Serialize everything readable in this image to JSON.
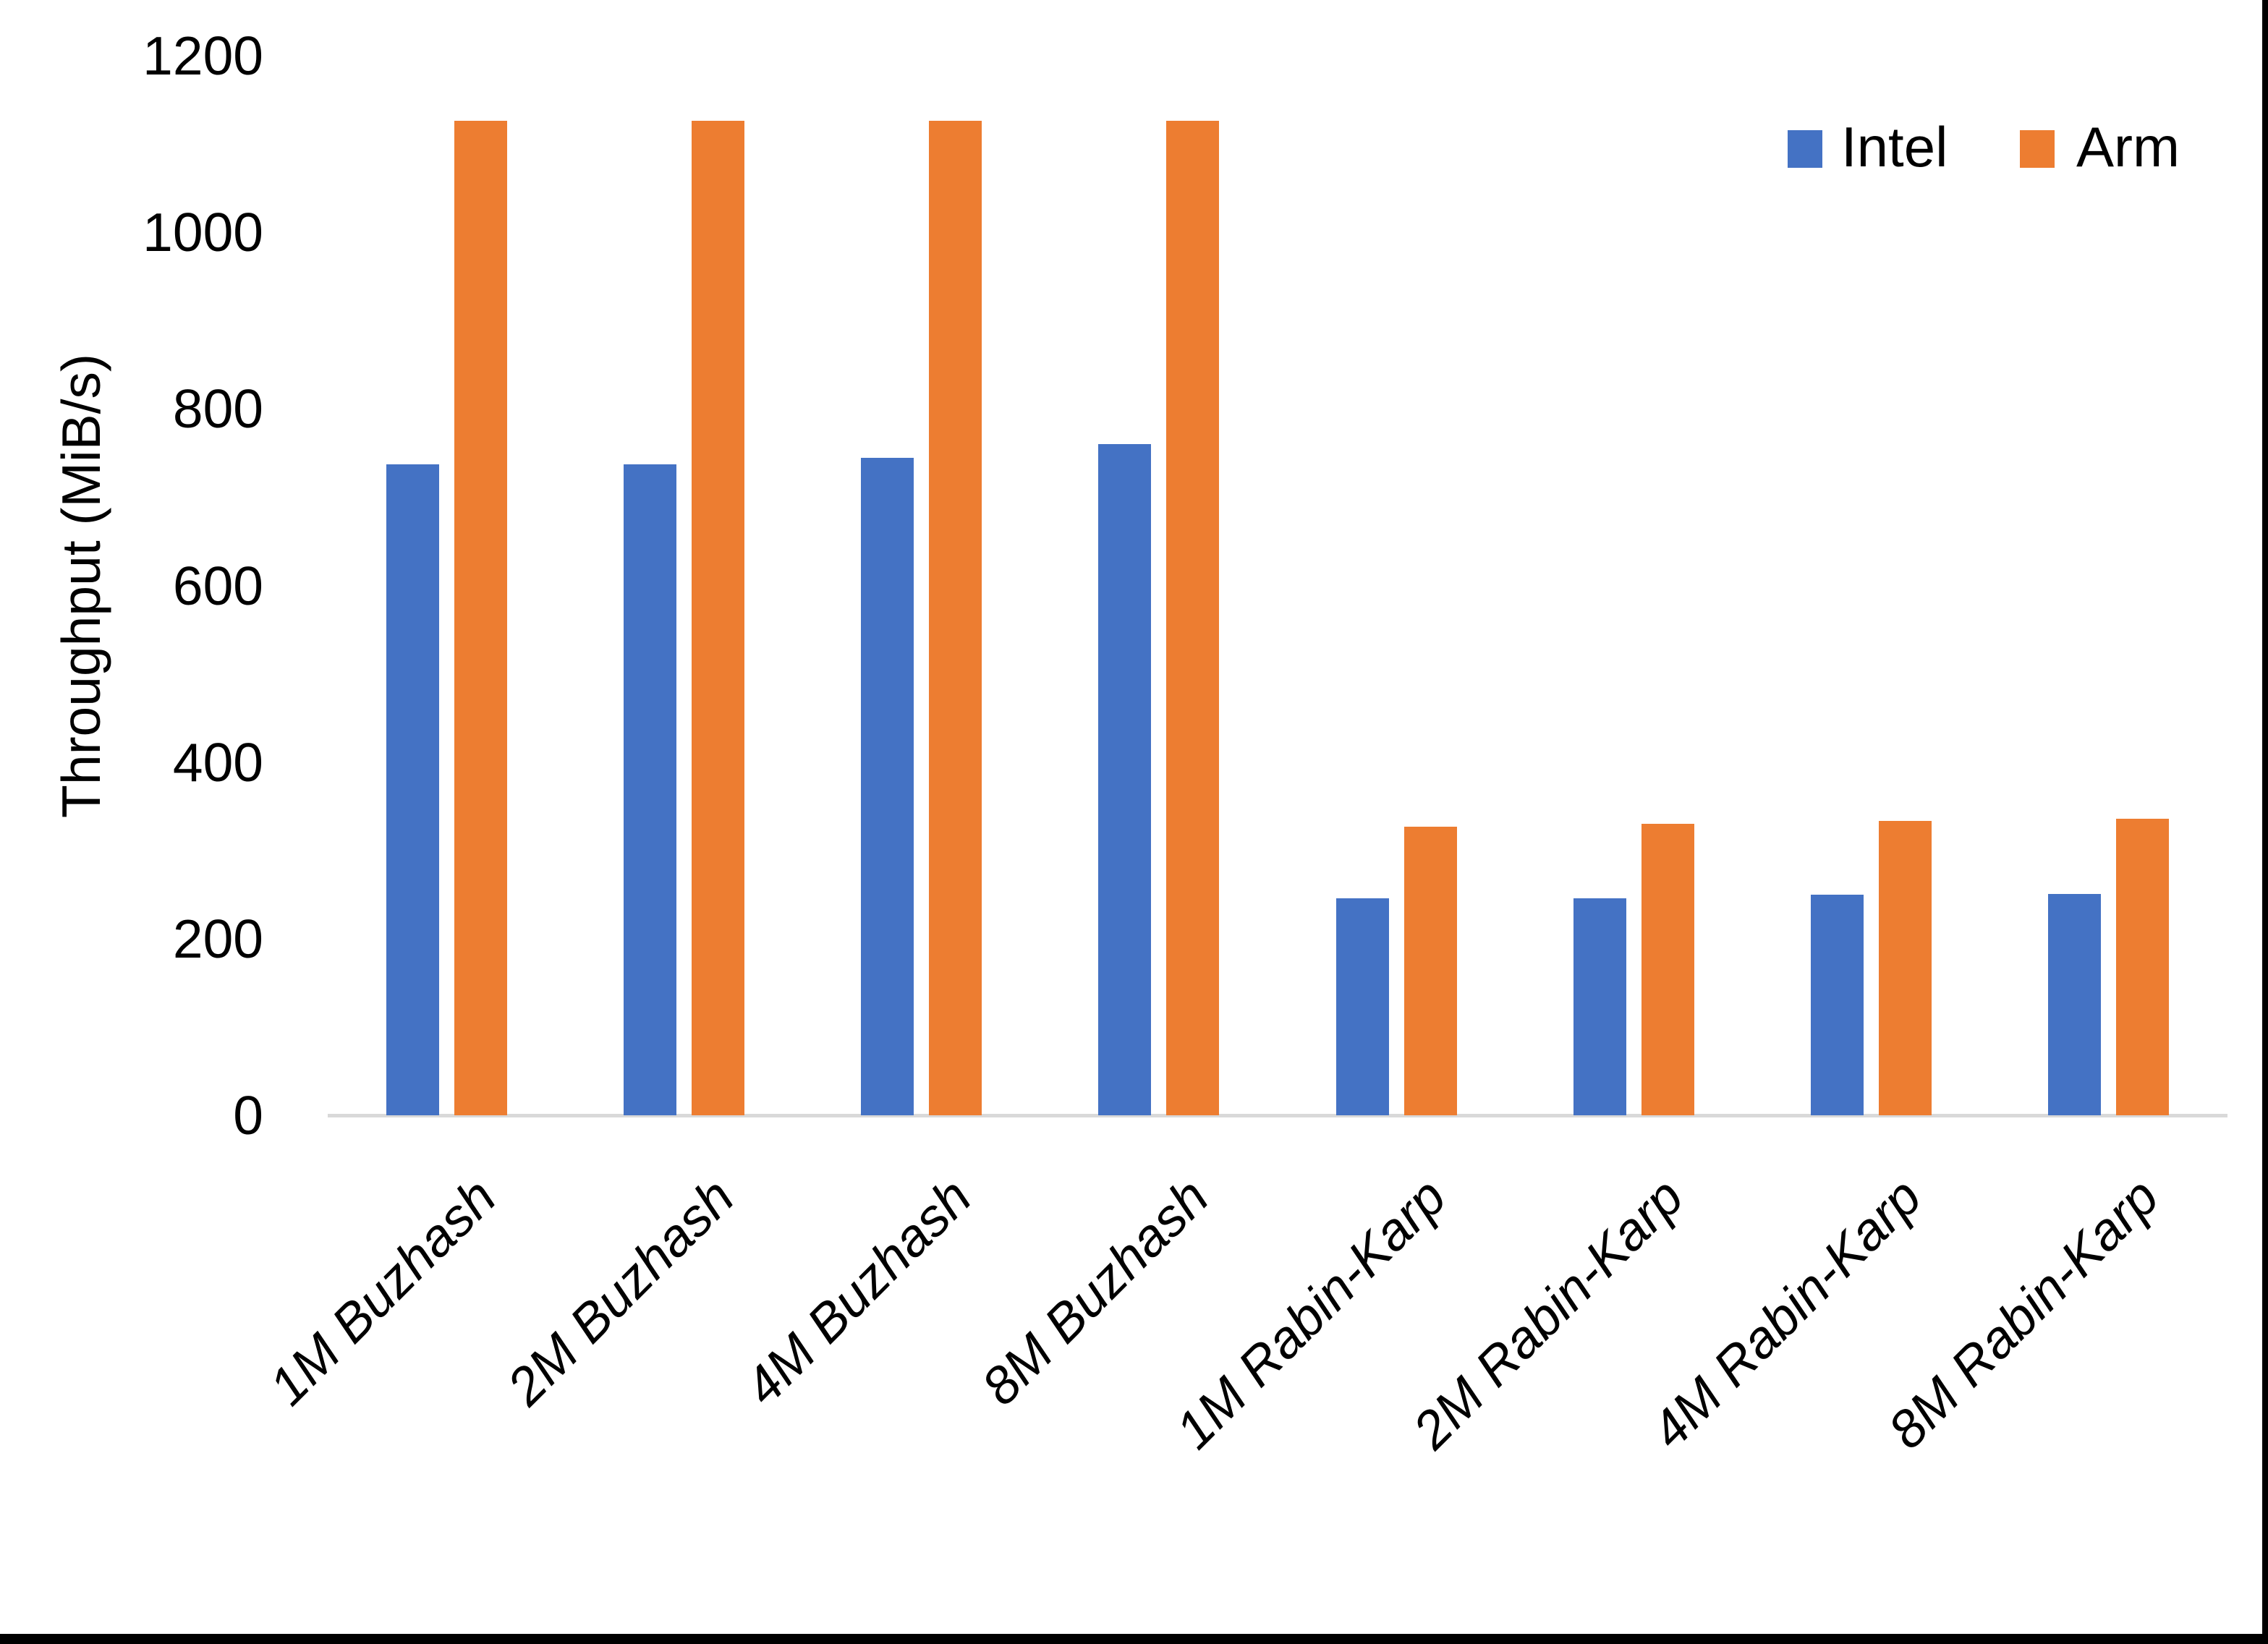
{
  "chart_data": {
    "type": "bar",
    "title": "",
    "categories": [
      "1M Buzhash",
      "2M Buzhash",
      "4M Buzhash",
      "8M Buzhash",
      "1M Rabin-Karp",
      "2M Rabin-Karp",
      "4M Rabin-Karp",
      "8M Rabin-Karp"
    ],
    "series": [
      {
        "name": "Intel",
        "color": "#4472C4",
        "values": [
          737,
          737,
          745,
          760,
          246,
          246,
          250,
          251
        ]
      },
      {
        "name": "Arm",
        "color": "#ED7D31",
        "values": [
          1126,
          1126,
          1126,
          1126,
          327,
          330,
          333,
          336
        ]
      }
    ],
    "xlabel": "",
    "ylabel": "Throughput (MiB/s)",
    "ylim": [
      0,
      1200
    ],
    "yticks": [
      1200,
      1000,
      800,
      600,
      400,
      200,
      0
    ],
    "grid": false,
    "legend_position": "top-right"
  },
  "axis": {
    "y_title": "Throughput (MiB/s)",
    "y_tick_labels": [
      "1200",
      "1000",
      "800",
      "600",
      "400",
      "200",
      "0"
    ]
  },
  "legend": {
    "items": [
      {
        "label": "Intel",
        "color": "#4472C4"
      },
      {
        "label": "Arm",
        "color": "#ED7D31"
      }
    ]
  },
  "colors": {
    "intel": "#4472C4",
    "arm": "#ED7D31",
    "axis_line": "#D9D9D9",
    "text": "#000000",
    "background": "#FFFFFF",
    "screenshot_border": "#000000"
  }
}
